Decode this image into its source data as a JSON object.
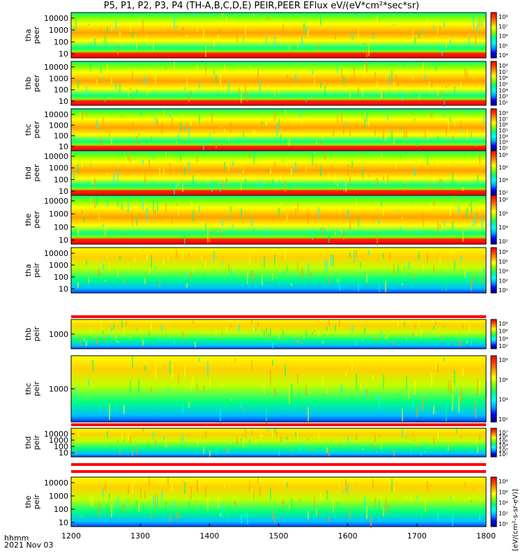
{
  "header": {
    "title": "P5, P1, P2, P3, P4 (TH-A,B,C,D,E) PEIR,PEER EFlux eV/(eV*cm²*sec*sr)"
  },
  "footer": {
    "time_label": "hhmm",
    "date_label": "2021 Nov 03"
  },
  "colorbar": {
    "unit": "[eV/(cm²-s-sr-eV)]"
  },
  "chart_data": {
    "type": "heatmap",
    "xlim": [
      1200,
      1800
    ],
    "x_ticks": [
      "1200",
      "1300",
      "1400",
      "1500",
      "1600",
      "1700",
      "1800"
    ],
    "colormap": [
      "#ffffff",
      "#000080",
      "#0000ff",
      "#00a0ff",
      "#00ffff",
      "#00ff80",
      "#80ff00",
      "#ffff00",
      "#ffa000",
      "#ff4000",
      "#ff0000"
    ],
    "panels": [
      {
        "probe": "tha",
        "species": "peer",
        "ylabel": "tha\npeer",
        "y_ticks": [
          "10000",
          "1000",
          "100",
          "10"
        ],
        "cbar_ticks": [
          "10⁸",
          "10⁷",
          "10⁶",
          "10⁵",
          "10⁴"
        ],
        "red_base": true,
        "level": 0.72
      },
      {
        "probe": "thb",
        "species": "peer",
        "ylabel": "thb\npeer",
        "y_ticks": [
          "10000",
          "1000",
          "100",
          "10"
        ],
        "cbar_ticks": [
          "10⁸",
          "10⁷",
          "10⁶",
          "10⁵",
          "10⁴",
          "10³",
          "10²"
        ],
        "red_base": true,
        "level": 0.55
      },
      {
        "probe": "thc",
        "species": "peer",
        "ylabel": "thc\npeer",
        "y_ticks": [
          "10000",
          "1000",
          "100",
          "10"
        ],
        "cbar_ticks": [
          "10⁸",
          "10⁷",
          "10⁶",
          "10⁵",
          "10⁴",
          "10³",
          "10²"
        ],
        "red_base": true,
        "level": 0.55
      },
      {
        "probe": "thd",
        "species": "peer",
        "ylabel": "thd\npeer",
        "y_ticks": [
          "10000",
          "1000",
          "100",
          "10"
        ],
        "cbar_ticks": [
          "10⁸",
          "10⁶",
          "10⁴",
          "10²"
        ],
        "red_base": true,
        "level": 0.7
      },
      {
        "probe": "the",
        "species": "peer",
        "ylabel": "the\npeer",
        "y_ticks": [
          "10000",
          "1000",
          "100",
          "10"
        ],
        "cbar_ticks": [
          "10⁸",
          "10⁶",
          "10⁴",
          "10²"
        ],
        "red_base": true,
        "level": 0.7
      },
      {
        "probe": "tha",
        "species": "peir",
        "ylabel": "tha\npeir",
        "y_ticks": [
          "10000",
          "1000",
          "100",
          "10"
        ],
        "cbar_ticks": [
          "10⁸",
          "10⁶",
          "10⁴",
          "10²",
          "10⁰"
        ],
        "red_base": false,
        "level": 0.55
      },
      {
        "probe": "thb",
        "species": "peir",
        "ylabel": "thb\npeir",
        "y_ticks": [
          "1000"
        ],
        "cbar_ticks": [
          "10⁸",
          "10⁶",
          "10⁴",
          "10²"
        ],
        "red_base": false,
        "level": 0.5
      },
      {
        "probe": "thc",
        "species": "peir",
        "ylabel": "thc\npeir",
        "y_ticks": [
          "1000"
        ],
        "cbar_ticks": [
          "10⁸",
          "10⁶",
          "10⁴",
          "10²"
        ],
        "red_base": false,
        "level": 0.5
      },
      {
        "probe": "thd",
        "species": "peir",
        "ylabel": "thd\npeir",
        "y_ticks": [
          "10000",
          "1000",
          "100",
          "10"
        ],
        "cbar_ticks": [
          "10⁷",
          "10⁶",
          "10⁵",
          "10⁴",
          "10³",
          "10²"
        ],
        "red_base": false,
        "level": 0.5
      },
      {
        "probe": "the",
        "species": "peir",
        "ylabel": "the\npeir",
        "y_ticks": [
          "10000",
          "1000",
          "100",
          "10"
        ],
        "cbar_ticks": [
          "10⁸",
          "10⁶",
          "10⁴",
          "10²",
          "10⁰"
        ],
        "red_base": false,
        "level": 0.55
      }
    ]
  }
}
